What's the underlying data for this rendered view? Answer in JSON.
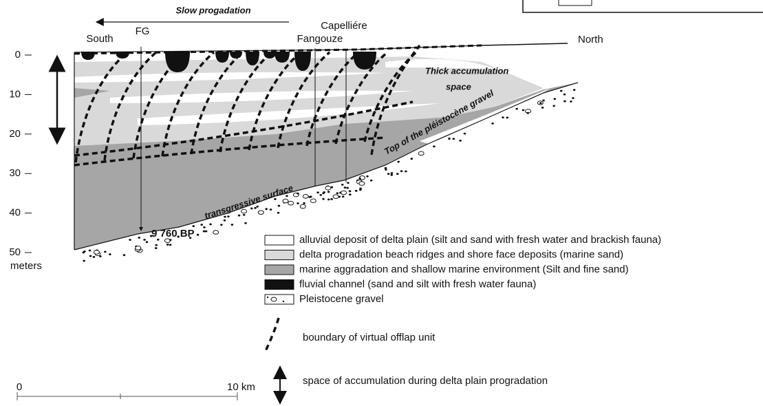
{
  "title_arrow": "Slow progadation",
  "section": {
    "south": "South",
    "north": "North",
    "borehole_fg": "FG",
    "borehole_capelliere": "Capelliére",
    "borehole_fangouze": "Fangouze"
  },
  "depth_axis": {
    "ticks": [
      0,
      10,
      20,
      30,
      40,
      50
    ],
    "unit": "meters"
  },
  "annotations": {
    "thick_accumulation": [
      "Thick accumulation",
      "space"
    ],
    "gravel_top": "Top of the  pléistocène gravel",
    "transgressive": "transgressive surface",
    "date": "9 760 BP"
  },
  "legend": [
    {
      "label": "alluvial deposit of delta plain (silt and sand with fresh water and brackish fauna)"
    },
    {
      "label": "delta progradation beach ridges and shore face deposits (marine sand)"
    },
    {
      "label": "marine aggradation and shallow marine environment (Silt and fine sand)"
    },
    {
      "label": "fluvial channel (sand and silt with fresh water fauna)"
    },
    {
      "label": "Pleistocene gravel"
    }
  ],
  "symbols": {
    "offlap": "boundary of virtual offlap unit",
    "accumulation": "space of accumulation during delta plain progradation"
  },
  "scale": {
    "start": "0",
    "end": "10 km"
  }
}
